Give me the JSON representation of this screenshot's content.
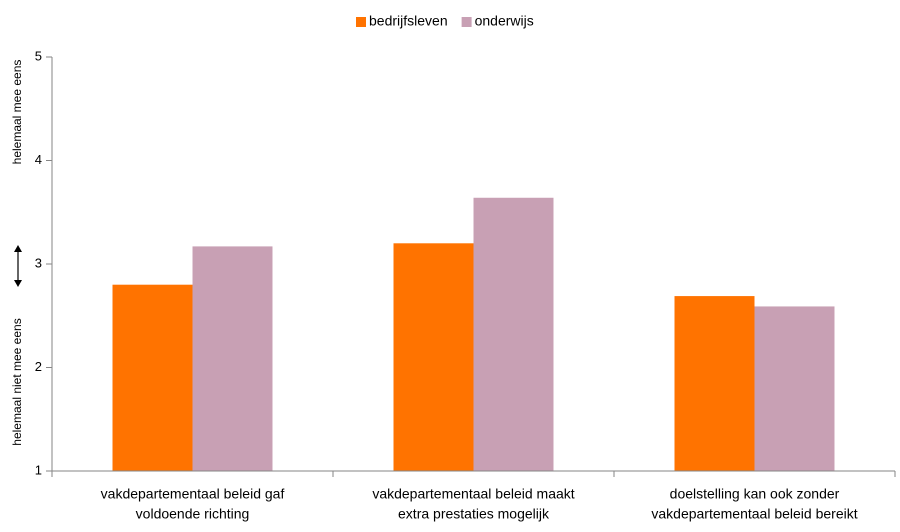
{
  "chart_data": {
    "type": "bar",
    "ylabel_top": "helemaal mee eens",
    "ylabel_bottom": "helemaal niet mee eens",
    "categories": [
      [
        "vakdepartementaal beleid gaf",
        "voldoende richting"
      ],
      [
        "vakdepartementaal beleid maakt",
        "extra prestaties mogelijk"
      ],
      [
        "doelstelling kan ook zonder",
        "vakdepartementaal beleid bereikt"
      ]
    ],
    "series": [
      {
        "name": "bedrijfsleven",
        "color": "#ff7300",
        "values": [
          2.8,
          3.2,
          2.69
        ]
      },
      {
        "name": "onderwijs",
        "color": "#c8a0b4",
        "values": [
          3.17,
          3.64,
          2.59
        ]
      }
    ],
    "ylim": [
      1,
      5
    ],
    "yticks": [
      1,
      2,
      3,
      4,
      5
    ],
    "grid": false,
    "legend": "top"
  }
}
